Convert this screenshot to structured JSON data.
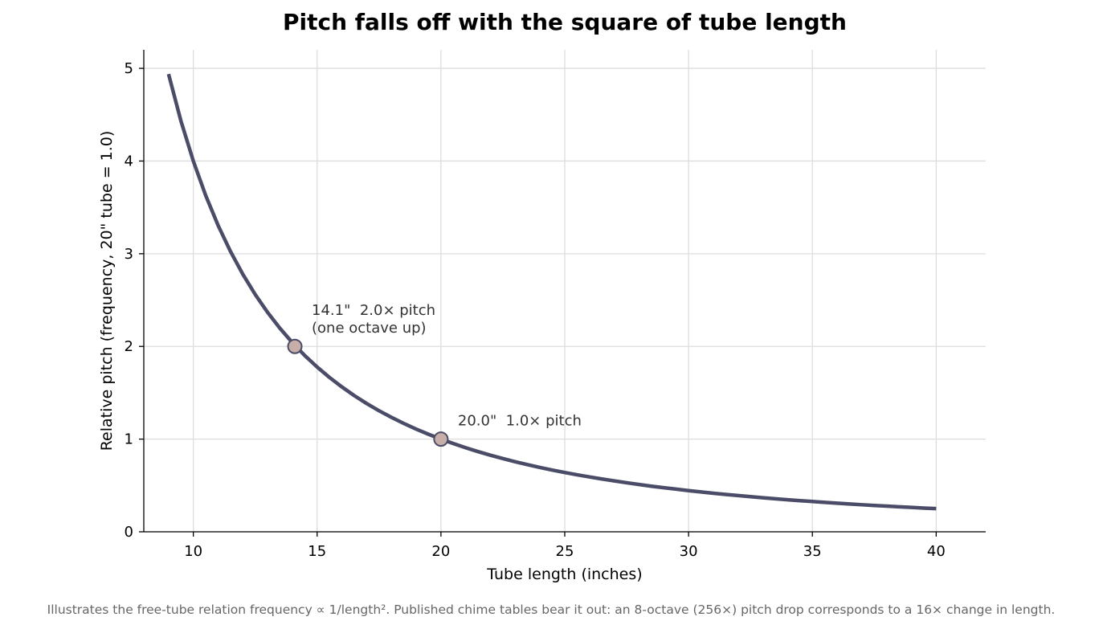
{
  "chart_data": {
    "type": "line",
    "title": "Pitch falls off with the square of tube length",
    "xlabel": "Tube length (inches)",
    "ylabel": "Relative pitch (frequency, 20\" tube = 1.0)",
    "xlim": [
      8,
      42
    ],
    "ylim": [
      0,
      5.2
    ],
    "xticks": [
      10,
      15,
      20,
      25,
      30,
      35,
      40
    ],
    "yticks": [
      0,
      1,
      2,
      3,
      4,
      5
    ],
    "grid": true,
    "series": [
      {
        "x": [
          9,
          9.5,
          10,
          10.5,
          11,
          11.5,
          12,
          12.5,
          13,
          13.5,
          14,
          14.5,
          15,
          15.5,
          16,
          16.5,
          17,
          17.5,
          18,
          18.5,
          19,
          19.5,
          20,
          20.5,
          21,
          21.5,
          22,
          22.5,
          23,
          23.5,
          24,
          24.5,
          25,
          25.5,
          26,
          26.5,
          27,
          27.5,
          28,
          28.5,
          29,
          29.5,
          30,
          30.5,
          31,
          31.5,
          32,
          32.5,
          33,
          33.5,
          34,
          34.5,
          35,
          35.5,
          36,
          36.5,
          37,
          37.5,
          38,
          38.5,
          39,
          39.5,
          40
        ],
        "y": [
          4.938,
          4.432,
          4.0,
          3.628,
          3.306,
          3.025,
          2.778,
          2.56,
          2.367,
          2.195,
          2.041,
          1.902,
          1.778,
          1.665,
          1.563,
          1.469,
          1.384,
          1.306,
          1.235,
          1.169,
          1.108,
          1.052,
          1.0,
          0.952,
          0.907,
          0.865,
          0.826,
          0.79,
          0.756,
          0.724,
          0.694,
          0.666,
          0.64,
          0.615,
          0.592,
          0.57,
          0.549,
          0.529,
          0.51,
          0.492,
          0.476,
          0.46,
          0.444,
          0.43,
          0.416,
          0.403,
          0.391,
          0.379,
          0.367,
          0.356,
          0.346,
          0.336,
          0.327,
          0.317,
          0.309,
          0.3,
          0.292,
          0.284,
          0.277,
          0.27,
          0.263,
          0.256,
          0.25
        ],
        "color": "#4a4c68"
      }
    ],
    "highlight_points": [
      {
        "x": 14.1,
        "y": 2.0,
        "label_lines": [
          "14.1\"  2.0× pitch",
          "(one octave up)"
        ]
      },
      {
        "x": 20.0,
        "y": 1.0,
        "label_lines": [
          "20.0\"  1.0× pitch"
        ]
      }
    ],
    "marker_fill": "#c8aea8",
    "marker_edge": "#4a4c68",
    "caption": "Illustrates the free-tube relation frequency ∝ 1/length². Published chime tables bear it out: an 8-octave (256×) pitch drop corresponds to a 16× change in length."
  }
}
